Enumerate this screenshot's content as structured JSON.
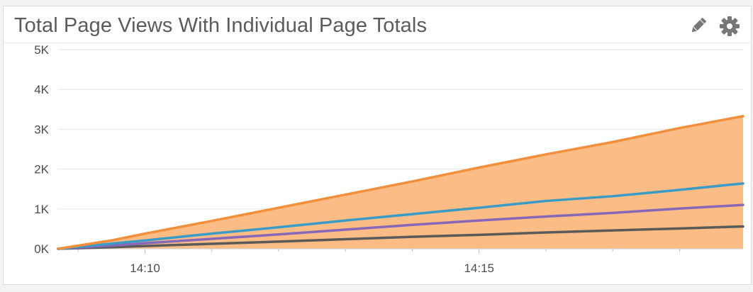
{
  "widget": {
    "title": "Total Page Views With Individual Page Totals",
    "edit_icon": "pencil-icon",
    "settings_icon": "gear-icon"
  },
  "chart_data": {
    "type": "line",
    "title": "Total Page Views With Individual Page Totals",
    "xlabel": "",
    "ylabel": "",
    "x_ticks": [
      "14:10",
      "14:15"
    ],
    "x_tick_minutes": [
      10,
      15
    ],
    "xlim_minutes": [
      8.7,
      18.95
    ],
    "y_ticks": [
      "0K",
      "1K",
      "2K",
      "3K",
      "4K",
      "5K"
    ],
    "ylim": [
      0,
      5000
    ],
    "grid": true,
    "legend": "none",
    "x": [
      8.7,
      9.5,
      10,
      11,
      12,
      13,
      14,
      15,
      16,
      17,
      18,
      18.95
    ],
    "series": [
      {
        "color": "#f28f3b",
        "fill": "#fbbd85",
        "area": true,
        "values": [
          0,
          210,
          380,
          700,
          1030,
          1360,
          1690,
          2040,
          2370,
          2680,
          3030,
          3330
        ]
      },
      {
        "color": "#3a9bc6",
        "values": [
          0,
          130,
          210,
          380,
          540,
          710,
          870,
          1030,
          1200,
          1320,
          1480,
          1640
        ]
      },
      {
        "color": "#8667b8",
        "values": [
          0,
          80,
          140,
          250,
          360,
          480,
          600,
          710,
          810,
          900,
          1010,
          1100
        ]
      },
      {
        "color": "#5a5a5a",
        "values": [
          0,
          40,
          70,
          125,
          180,
          240,
          300,
          350,
          410,
          460,
          510,
          560
        ]
      }
    ]
  }
}
